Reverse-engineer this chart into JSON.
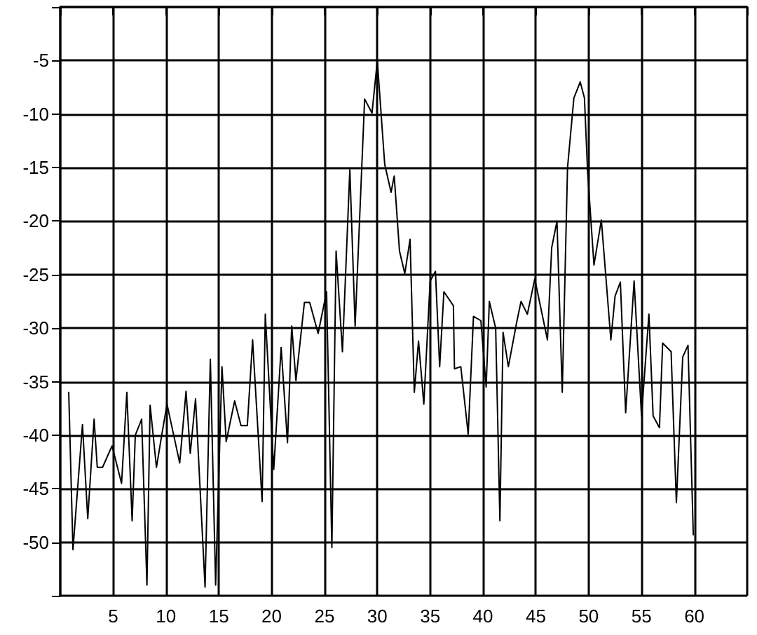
{
  "chart_data": {
    "type": "line",
    "color": "#000000",
    "marker": "none",
    "line_style": "solid",
    "grid": true,
    "x": [
      0.8,
      1.2,
      2.1,
      2.6,
      3.2,
      3.5,
      4.0,
      4.9,
      5.8,
      6.3,
      6.8,
      7.1,
      7.7,
      8.2,
      8.5,
      9.1,
      9.6,
      10.1,
      11.3,
      11.9,
      12.3,
      12.8,
      13.7,
      14.2,
      14.7,
      15.3,
      15.7,
      16.5,
      17.1,
      17.7,
      18.2,
      19.1,
      19.4,
      20.2,
      20.9,
      21.5,
      21.9,
      22.3,
      23.1,
      23.6,
      24.4,
      25.2,
      25.7,
      26.1,
      26.7,
      27.4,
      27.9,
      28.8,
      29.5,
      30.0,
      30.7,
      31.3,
      31.6,
      32.1,
      32.6,
      33.1,
      33.5,
      33.9,
      34.4,
      35.0,
      35.5,
      35.9,
      36.3,
      37.2,
      37.3,
      37.9,
      38.6,
      39.1,
      39.8,
      40.3,
      40.6,
      41.2,
      41.6,
      41.9,
      42.4,
      43.2,
      43.6,
      44.2,
      44.9,
      46.1,
      46.5,
      47.0,
      47.5,
      48.0,
      48.6,
      49.2,
      49.6,
      49.9,
      50.5,
      51.2,
      52.1,
      52.5,
      53.0,
      53.5,
      54.3,
      55.0,
      55.7,
      56.1,
      56.7,
      57.0,
      57.8,
      58.3,
      58.9,
      59.4,
      59.9
    ],
    "values": [
      -36,
      -50.7,
      -39,
      -47.8,
      -38.5,
      -43,
      -43,
      -41,
      -44.5,
      -36,
      -48,
      -40,
      -38.5,
      -54,
      -37.2,
      -43,
      -40,
      -37.1,
      -42.6,
      -35.9,
      -41.7,
      -36.6,
      -54.2,
      -32.9,
      -54,
      -33.6,
      -40.6,
      -36.8,
      -39.1,
      -39.1,
      -31.1,
      -46.2,
      -28.7,
      -43.2,
      -31.8,
      -40.7,
      -29.8,
      -34.9,
      -27.6,
      -27.6,
      -30.5,
      -26.6,
      -50.5,
      -22.8,
      -32.2,
      -15.2,
      -29.8,
      -8.6,
      -9.9,
      -5.0,
      -14.7,
      -17.3,
      -15.8,
      -22.8,
      -24.9,
      -21.7,
      -36,
      -31.2,
      -37.1,
      -25.6,
      -24.7,
      -33.6,
      -26.6,
      -27.9,
      -33.8,
      -33.6,
      -39.9,
      -28.9,
      -29.3,
      -35.5,
      -27.5,
      -30,
      -48,
      -30.4,
      -33.6,
      -29.4,
      -27.5,
      -28.7,
      -25.4,
      -31.1,
      -22.5,
      -20,
      -36,
      -15,
      -8.5,
      -7,
      -8.5,
      -15.4,
      -24.1,
      -19.9,
      -31.1,
      -27,
      -25.7,
      -37.9,
      -25.6,
      -38.2,
      -28.7,
      -38.2,
      -39.3,
      -31.4,
      -32.2,
      -46.3,
      -32.7,
      -31.6,
      -49.3
    ],
    "xlim": [
      0,
      65
    ],
    "xticks": [
      {
        "value": 0,
        "label": null
      },
      5,
      10,
      15,
      20,
      25,
      30,
      35,
      40,
      45,
      50,
      55,
      60,
      {
        "value": 65,
        "label": null
      }
    ],
    "ylim": [
      -55,
      0
    ],
    "yticks": [
      {
        "value": -55,
        "label": null
      },
      -50,
      -45,
      -40,
      -35,
      -30,
      -25,
      -20,
      -15,
      -10,
      -5,
      {
        "value": 0,
        "label": null
      }
    ]
  }
}
